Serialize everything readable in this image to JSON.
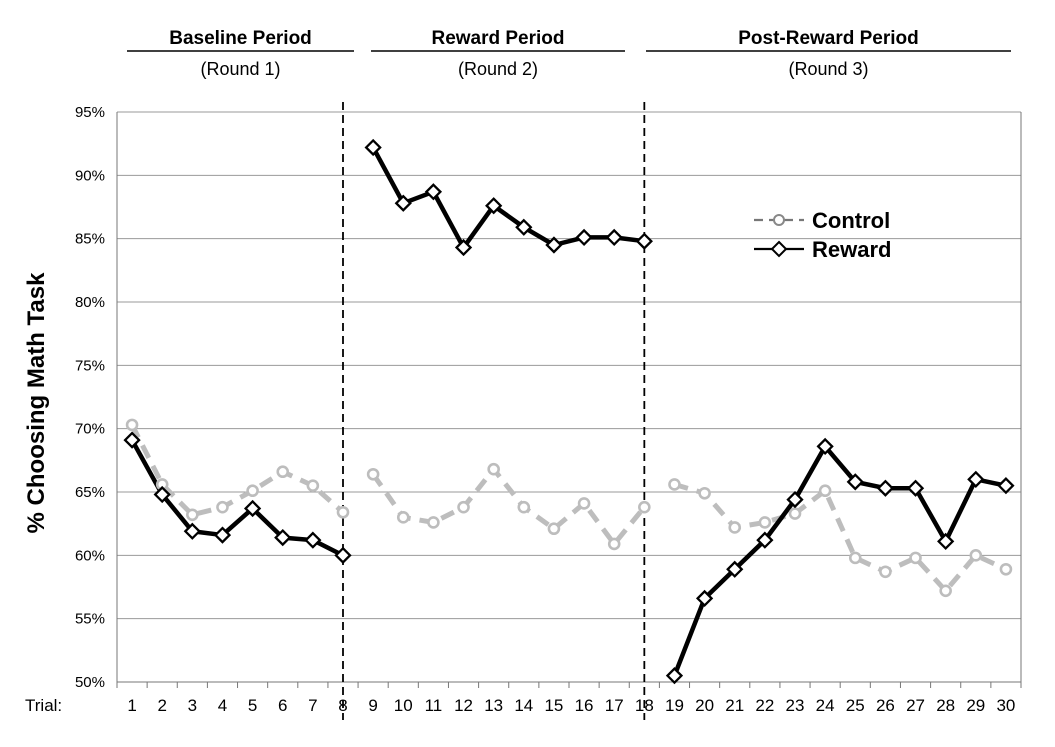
{
  "chart_data": {
    "type": "line",
    "ylabel": "% Choosing Math Task",
    "xlabel_prefix": "Trial:",
    "ylim": [
      50,
      95
    ],
    "y_ticks": [
      "50%",
      "55%",
      "60%",
      "65%",
      "70%",
      "75%",
      "80%",
      "85%",
      "90%",
      "95%"
    ],
    "x": [
      1,
      2,
      3,
      4,
      5,
      6,
      7,
      8,
      9,
      10,
      11,
      12,
      13,
      14,
      15,
      16,
      17,
      18,
      19,
      20,
      21,
      22,
      23,
      24,
      25,
      26,
      27,
      28,
      29,
      30
    ],
    "grid": true,
    "legend_position": "upper-right",
    "periods": [
      {
        "title": "Baseline Period",
        "subtitle": "(Round 1)",
        "trials": [
          1,
          8
        ]
      },
      {
        "title": "Reward Period",
        "subtitle": "(Round 2)",
        "trials": [
          9,
          18
        ]
      },
      {
        "title": "Post-Reward Period",
        "subtitle": "(Round 3)",
        "trials": [
          19,
          30
        ]
      }
    ],
    "dividers_after_trial": [
      8,
      18
    ],
    "series": [
      {
        "name": "Control",
        "style": "dashed",
        "marker": "circle",
        "color": "#bdbdbd",
        "segments": [
          {
            "x": [
              1,
              2,
              3,
              4,
              5,
              6,
              7,
              8
            ],
            "y": [
              70.3,
              65.6,
              63.2,
              63.8,
              65.1,
              66.6,
              65.5,
              63.4
            ]
          },
          {
            "x": [
              9,
              10,
              11,
              12,
              13,
              14,
              15,
              16,
              17,
              18
            ],
            "y": [
              66.4,
              63.0,
              62.6,
              63.8,
              66.8,
              63.8,
              62.1,
              64.1,
              60.9,
              63.8
            ]
          },
          {
            "x": [
              19,
              20,
              21,
              22,
              23,
              24,
              25,
              26,
              27,
              28,
              29,
              30
            ],
            "y": [
              65.6,
              64.9,
              62.2,
              62.6,
              63.3,
              65.1,
              59.8,
              58.7,
              59.8,
              57.2,
              60.0,
              58.9
            ]
          }
        ]
      },
      {
        "name": "Reward",
        "style": "solid",
        "marker": "diamond",
        "color": "#000000",
        "segments": [
          {
            "x": [
              1,
              2,
              3,
              4,
              5,
              6,
              7,
              8
            ],
            "y": [
              69.1,
              64.8,
              61.9,
              61.6,
              63.7,
              61.4,
              61.2,
              60.0
            ]
          },
          {
            "x": [
              9,
              10,
              11,
              12,
              13,
              14,
              15,
              16,
              17,
              18
            ],
            "y": [
              92.2,
              87.8,
              88.7,
              84.3,
              87.6,
              85.9,
              84.5,
              85.1,
              85.1,
              84.8
            ]
          },
          {
            "x": [
              19,
              20,
              21,
              22,
              23,
              24,
              25,
              26,
              27,
              28,
              29,
              30
            ],
            "y": [
              50.5,
              56.6,
              58.9,
              61.2,
              64.4,
              68.6,
              65.8,
              65.3,
              65.3,
              61.1,
              66.0,
              65.5
            ]
          }
        ]
      }
    ]
  },
  "colors": {
    "control": "#bdbdbd",
    "reward": "#000000",
    "grid": "#9a9a9a",
    "axis": "#777777"
  }
}
